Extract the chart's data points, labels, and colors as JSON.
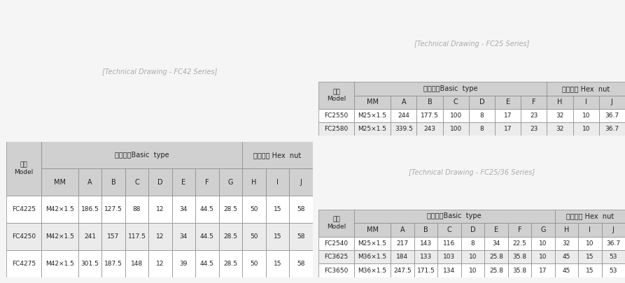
{
  "bg_color": "#f5f5f5",
  "table1": {
    "title_row": [
      "型号\nModel",
      "基本尺寸Basic  type",
      "六角螺母 Hex  nut"
    ],
    "header": [
      "MM",
      "A",
      "B",
      "C",
      "D",
      "E",
      "F",
      "G",
      "H",
      "I",
      "J"
    ],
    "rows": [
      [
        "FC4225",
        "M42×1.5",
        "186.5",
        "127.5",
        "88",
        "12",
        "34",
        "44.5",
        "28.5",
        "50",
        "15",
        "58"
      ],
      [
        "FC4250",
        "M42×1.5",
        "241",
        "157",
        "117.5",
        "12",
        "34",
        "44.5",
        "28.5",
        "50",
        "15",
        "58"
      ],
      [
        "FC4275",
        "M42×1.5",
        "301.5",
        "187.5",
        "148",
        "12",
        "39",
        "44.5",
        "28.5",
        "50",
        "15",
        "58"
      ]
    ],
    "col_spans": {
      "basic": 8,
      "hex": 3
    }
  },
  "table2": {
    "title_row": [
      "型号\nModel",
      "基本尺寸Basic  type",
      "六角螺母 Hex  nut"
    ],
    "header": [
      "MM",
      "A",
      "B",
      "C",
      "D",
      "E",
      "F",
      "H",
      "I",
      "J"
    ],
    "rows": [
      [
        "FC2550",
        "M25×1.5",
        "244",
        "177.5",
        "100",
        "8",
        "17",
        "23",
        "32",
        "10",
        "36.7"
      ],
      [
        "FC2580",
        "M25×1.5",
        "339.5",
        "243",
        "100",
        "8",
        "17",
        "23",
        "32",
        "10",
        "36.7"
      ]
    ],
    "col_spans": {
      "basic": 7,
      "hex": 3
    }
  },
  "table3": {
    "title_row": [
      "型号\nModel",
      "基本尺寸Basic  type",
      "六角螺母 Hex  nut"
    ],
    "header": [
      "MM",
      "A",
      "B",
      "C",
      "D",
      "E",
      "F",
      "G",
      "H",
      "I",
      "J"
    ],
    "rows": [
      [
        "FC2540",
        "M25×1.5",
        "217",
        "143",
        "116",
        "8",
        "34",
        "22.5",
        "10",
        "32",
        "10",
        "36.7"
      ],
      [
        "FC3625",
        "M36×1.5",
        "184",
        "133",
        "103",
        "10",
        "25.8",
        "35.8",
        "10",
        "45",
        "15",
        "53"
      ],
      [
        "FC3650",
        "M36×1.5",
        "247.5",
        "171.5",
        "134",
        "10",
        "25.8",
        "35.8",
        "17",
        "45",
        "15",
        "53"
      ]
    ],
    "col_spans": {
      "basic": 8,
      "hex": 3
    }
  },
  "header_bg": "#d0d0d0",
  "row_bg1": "#ffffff",
  "row_bg2": "#ebebeb",
  "border_color": "#888888",
  "text_color": "#222222"
}
